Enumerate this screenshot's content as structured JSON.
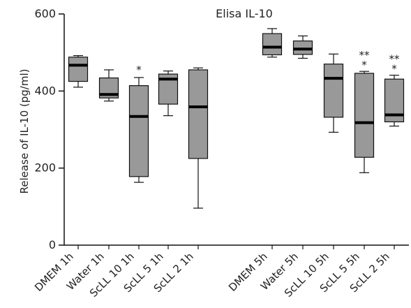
{
  "chart_data": {
    "type": "box",
    "title": "Elisa IL-10",
    "ylabel": "Release of IL-10 (pg/ml)",
    "xlabel": "",
    "ylim": [
      0,
      600
    ],
    "yticks": [
      0,
      200,
      400,
      600
    ],
    "grid": false,
    "colors": {
      "box_fill": "#999999",
      "box_stroke": "#111111",
      "median": "#000000",
      "axis": "#111111",
      "text": "#222222"
    },
    "categories": [
      {
        "label": "DMEM 1h",
        "min": 410,
        "q1": 425,
        "median": 467,
        "q3": 488,
        "max": 492,
        "significance": ""
      },
      {
        "label": "Water 1h",
        "min": 374,
        "q1": 382,
        "median": 391,
        "q3": 434,
        "max": 455,
        "significance": ""
      },
      {
        "label": "ScLL 10 1h",
        "min": 163,
        "q1": 178,
        "median": 334,
        "q3": 414,
        "max": 435,
        "significance": "*"
      },
      {
        "label": "ScLL 5 1h",
        "min": 336,
        "q1": 366,
        "median": 431,
        "q3": 444,
        "max": 452,
        "significance": ""
      },
      {
        "label": "ScLL 2 1h",
        "min": 96,
        "q1": 225,
        "median": 359,
        "q3": 455,
        "max": 460,
        "significance": ""
      },
      {
        "label": "DMEM 5h",
        "min": 488,
        "q1": 494,
        "median": 514,
        "q3": 549,
        "max": 562,
        "significance": ""
      },
      {
        "label": "Water 5h",
        "min": 485,
        "q1": 495,
        "median": 509,
        "q3": 530,
        "max": 543,
        "significance": ""
      },
      {
        "label": "ScLL 10 5h",
        "min": 293,
        "q1": 332,
        "median": 433,
        "q3": 470,
        "max": 496,
        "significance": ""
      },
      {
        "label": "ScLL 5 5h",
        "min": 188,
        "q1": 228,
        "median": 318,
        "q3": 446,
        "max": 451,
        "significance": "**\n*"
      },
      {
        "label": "ScLL 2 5h",
        "min": 309,
        "q1": 320,
        "median": 338,
        "q3": 431,
        "max": 441,
        "significance": "**\n*"
      }
    ]
  }
}
